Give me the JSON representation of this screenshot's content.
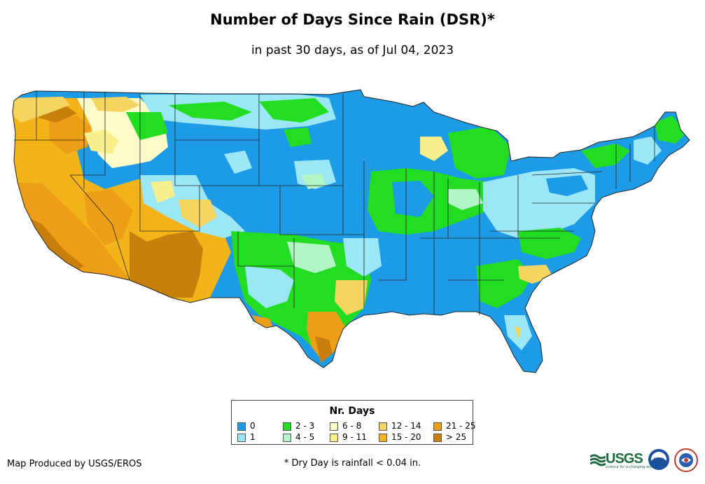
{
  "title": "Number of Days Since Rain (DSR)*",
  "subtitle": "in past 30 days, as of Jul 04, 2023",
  "legend": {
    "title": "Nr. Days",
    "items": [
      {
        "label": "0",
        "color": "#1e9be6"
      },
      {
        "label": "1",
        "color": "#9be7f7"
      },
      {
        "label": "2 - 3",
        "color": "#22dd22"
      },
      {
        "label": "4 - 5",
        "color": "#b3f5c6"
      },
      {
        "label": "6 - 8",
        "color": "#fdfbc8"
      },
      {
        "label": "9 - 11",
        "color": "#f7f08c"
      },
      {
        "label": "12 - 14",
        "color": "#f5d560"
      },
      {
        "label": "15 - 20",
        "color": "#f3b419"
      },
      {
        "label": "21 - 25",
        "color": "#ec9e17"
      },
      {
        "label": "> 25",
        "color": "#c97f0c"
      }
    ]
  },
  "credit": "Map Produced by USGS/EROS",
  "footnote": "* Dry Day is rainfall < 0.04 in.",
  "logos": {
    "usgs": "USGS",
    "usgs_tagline": "science for a changing world",
    "noaa": "noaa",
    "nws": "NWS"
  }
}
